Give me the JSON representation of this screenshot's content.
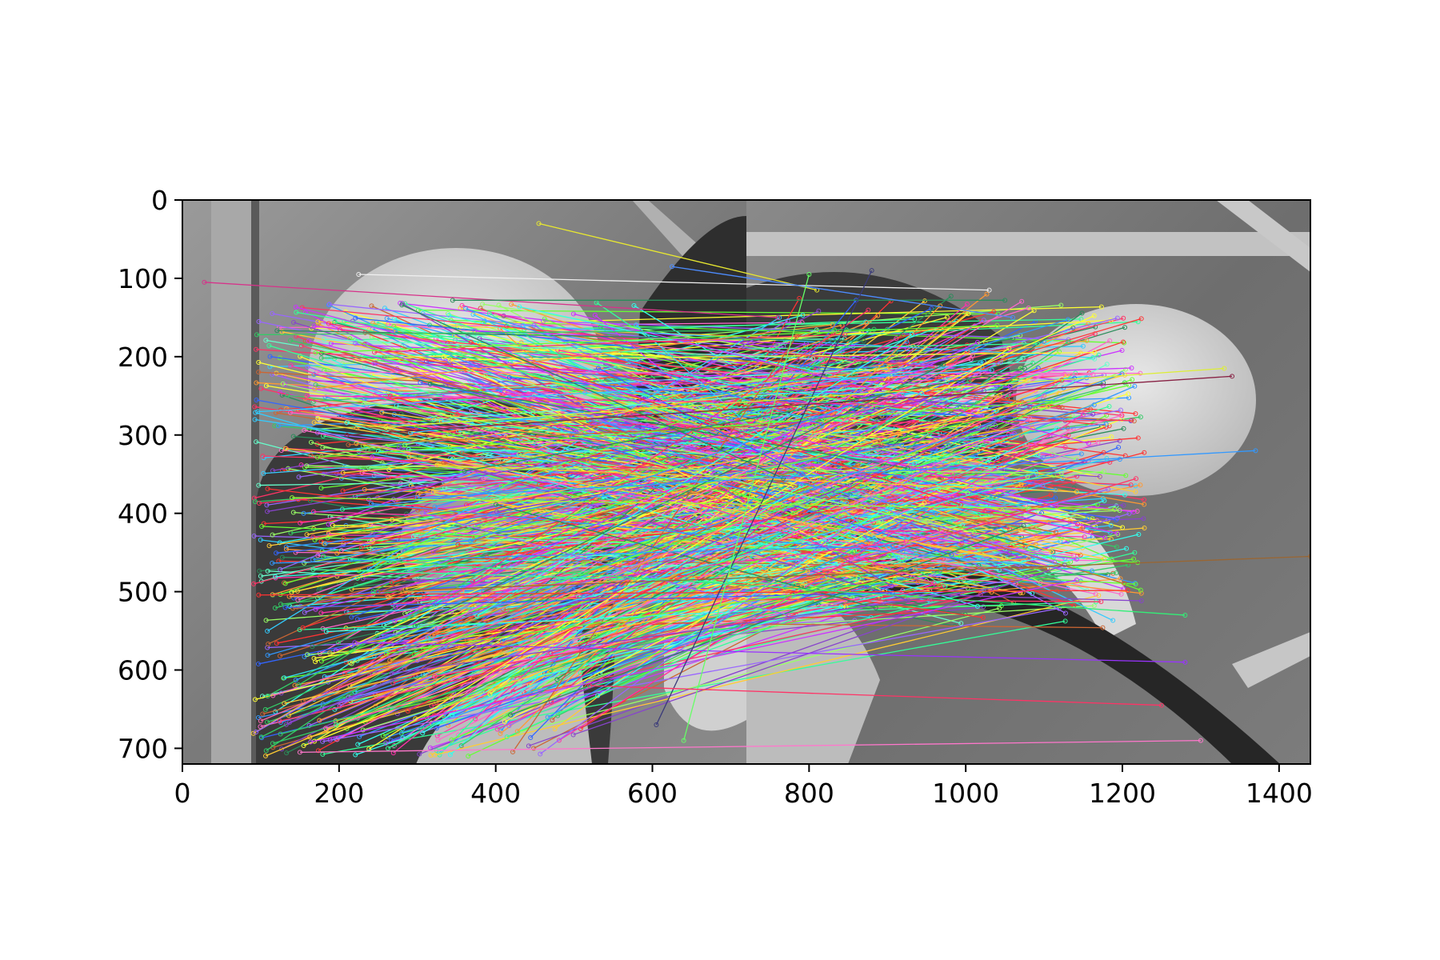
{
  "chart_data": {
    "type": "image-feature-match",
    "x_ticks": [
      0,
      200,
      400,
      600,
      800,
      1000,
      1200,
      1400
    ],
    "y_ticks": [
      0,
      100,
      200,
      300,
      400,
      500,
      600,
      700
    ],
    "xlim": [
      0,
      1440
    ],
    "ylim": [
      720,
      0
    ],
    "image": {
      "width": 1440,
      "height": 720,
      "split_x": 720,
      "colormap": "gray"
    },
    "match_lines_estimated_count": 900,
    "sample_matches": [
      {
        "x1": 28,
        "y1": 105,
        "x2": 760,
        "y2": 150,
        "color": "#d6338a"
      },
      {
        "x1": 455,
        "y1": 30,
        "x2": 810,
        "y2": 115,
        "color": "#e8e830"
      },
      {
        "x1": 225,
        "y1": 95,
        "x2": 1030,
        "y2": 115,
        "color": "#f0f0f0"
      },
      {
        "x1": 95,
        "y1": 172,
        "x2": 900,
        "y2": 165,
        "color": "#33cc66"
      },
      {
        "x1": 170,
        "y1": 195,
        "x2": 1040,
        "y2": 160,
        "color": "#66ff33"
      },
      {
        "x1": 345,
        "y1": 128,
        "x2": 1050,
        "y2": 128,
        "color": "#2a8c5a"
      },
      {
        "x1": 625,
        "y1": 85,
        "x2": 1060,
        "y2": 150,
        "color": "#4d8cff"
      },
      {
        "x1": 100,
        "y1": 665,
        "x2": 1100,
        "y2": 250,
        "color": "#ff66aa"
      },
      {
        "x1": 130,
        "y1": 610,
        "x2": 1180,
        "y2": 330,
        "color": "#33ddee"
      },
      {
        "x1": 150,
        "y1": 705,
        "x2": 1300,
        "y2": 690,
        "color": "#ff77cc"
      },
      {
        "x1": 220,
        "y1": 565,
        "x2": 1280,
        "y2": 590,
        "color": "#9933ff"
      },
      {
        "x1": 605,
        "y1": 670,
        "x2": 880,
        "y2": 90,
        "color": "#3a3a7a"
      },
      {
        "x1": 640,
        "y1": 690,
        "x2": 800,
        "y2": 95,
        "color": "#66ff66"
      },
      {
        "x1": 520,
        "y1": 620,
        "x2": 1250,
        "y2": 645,
        "color": "#ff3366"
      },
      {
        "x1": 300,
        "y1": 380,
        "x2": 1370,
        "y2": 320,
        "color": "#3399ff"
      },
      {
        "x1": 210,
        "y1": 300,
        "x2": 1340,
        "y2": 225,
        "color": "#882244"
      },
      {
        "x1": 260,
        "y1": 290,
        "x2": 1330,
        "y2": 215,
        "color": "#ddee33"
      },
      {
        "x1": 180,
        "y1": 455,
        "x2": 1280,
        "y2": 530,
        "color": "#33ee77"
      },
      {
        "x1": 250,
        "y1": 500,
        "x2": 1440,
        "y2": 455,
        "color": "#996633"
      },
      {
        "x1": 140,
        "y1": 380,
        "x2": 1190,
        "y2": 395,
        "color": "#99ff33"
      }
    ]
  }
}
